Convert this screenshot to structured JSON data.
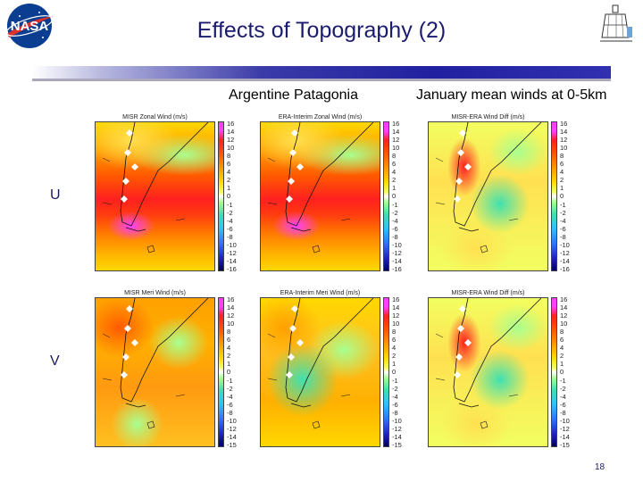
{
  "slide": {
    "title": "Effects of Topography (2)",
    "subtitle_left": "Argentine Patagonia",
    "subtitle_right": "January mean winds at 0-5km",
    "row_labels": {
      "u": "U",
      "v": "V"
    },
    "page_number": "18"
  },
  "logos": {
    "left": "nasa-logo",
    "right": "misr-instrument-logo"
  },
  "panels": [
    {
      "title": "MISR Zonal Wind (m/s)",
      "style": "zonal"
    },
    {
      "title": "ERA-Interim Zonal Wind (m/s)",
      "style": "zonal"
    },
    {
      "title": "MISR-ERA Wind Diff (m/s)",
      "style": "diff"
    },
    {
      "title": "MISR Meri Wind (m/s)",
      "style": "meri"
    },
    {
      "title": "ERA-Interim Meri Wind (m/s)",
      "style": "merib"
    },
    {
      "title": "MISR-ERA Wind Diff (m/s)",
      "style": "diff"
    }
  ],
  "colorbar_ticks": [
    "16",
    "14",
    "12",
    "10",
    "8",
    "6",
    "4",
    "2",
    "1",
    "0",
    "-1",
    "-2",
    "-4",
    "-6",
    "-8",
    "-10",
    "-12",
    "-14",
    "-16"
  ],
  "colorbar_ticks_v": [
    "16",
    "14",
    "12",
    "10",
    "8",
    "6",
    "4",
    "2",
    "1",
    "0",
    "-1",
    "-2",
    "-4",
    "-6",
    "-8",
    "-10",
    "-12",
    "-14",
    "-15"
  ],
  "colors": {
    "title": "#1c1c6e",
    "bar_blue": "#2020a0"
  }
}
